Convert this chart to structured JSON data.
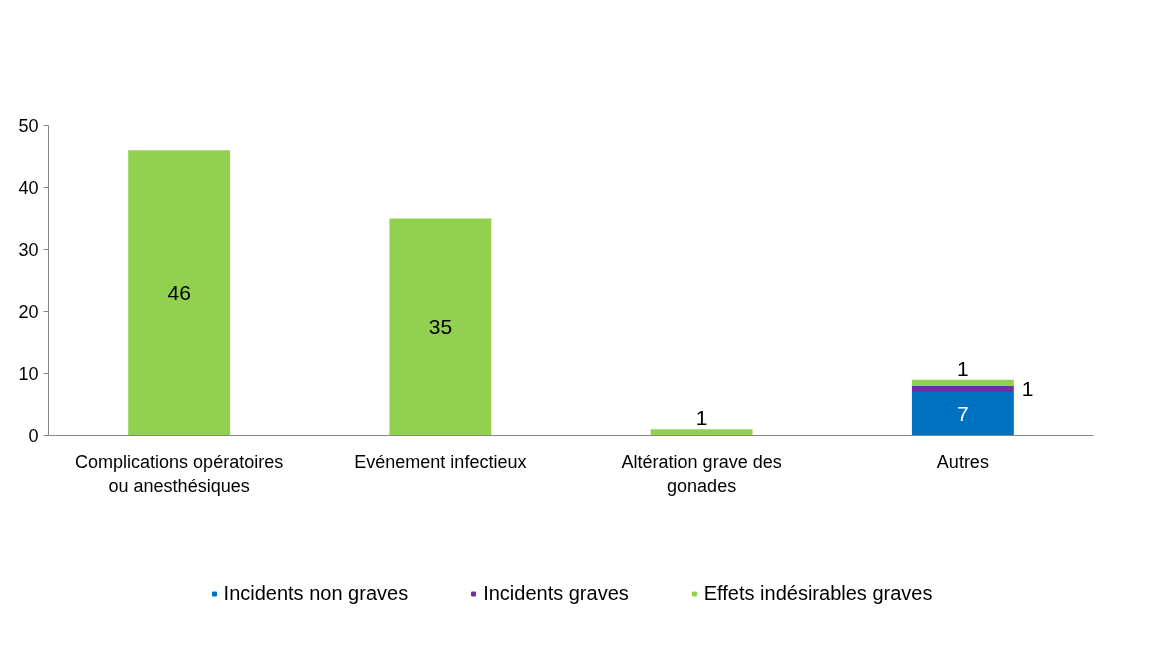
{
  "chart_data": {
    "type": "bar",
    "stacked": true,
    "categories": [
      "Complications opératoires ou anesthésiques",
      "Evénement infectieux",
      "Altération grave des gonades",
      "Autres"
    ],
    "series": [
      {
        "name": "Incidents non graves",
        "color": "#0070c0",
        "values": [
          0,
          0,
          0,
          7
        ],
        "value_labels": [
          null,
          null,
          null,
          "7"
        ]
      },
      {
        "name": "Incidents graves",
        "color": "#7030a0",
        "values": [
          0,
          0,
          0,
          1
        ],
        "value_labels": [
          null,
          null,
          null,
          "1"
        ]
      },
      {
        "name": "Effets indésirables graves",
        "color": "#92d050",
        "values": [
          46,
          35,
          1,
          1
        ],
        "value_labels": [
          "46",
          "35",
          "1",
          "1"
        ]
      }
    ],
    "ylim": [
      0,
      50
    ],
    "yticks": [
      0,
      10,
      20,
      30,
      40,
      50
    ],
    "grid": false,
    "legend": "bottom"
  }
}
